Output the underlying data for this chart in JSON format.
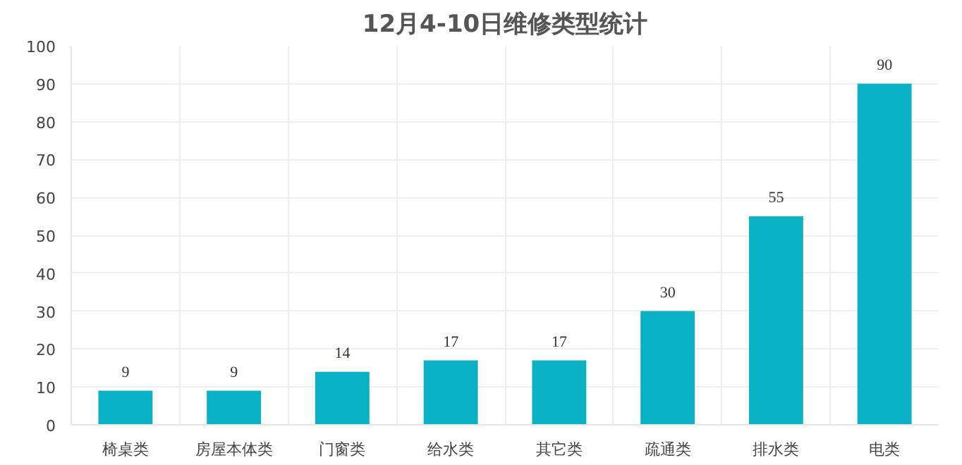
{
  "chart_data": {
    "type": "bar",
    "title": "12月4-10日维修类型统计",
    "categories": [
      "椅桌类",
      "房屋本体类",
      "门窗类",
      "给水类",
      "其它类",
      "疏通类",
      "排水类",
      "电类"
    ],
    "values": [
      9,
      9,
      14,
      17,
      17,
      30,
      55,
      90
    ],
    "color": "#0bb1c4",
    "ylim": [
      0,
      100
    ],
    "yticks": [
      0,
      10,
      20,
      30,
      40,
      50,
      60,
      70,
      80,
      90,
      100
    ],
    "grid": true,
    "data_labels": true
  }
}
